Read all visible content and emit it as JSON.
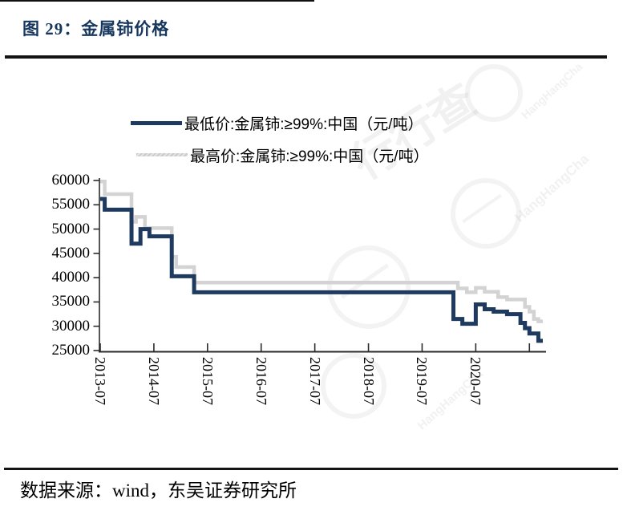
{
  "page": {
    "title": "图 29：金属铈价格",
    "source_note": "数据来源：wind，东吴证券研究所"
  },
  "watermark": {
    "text_cn": "行行查",
    "text_en": "HangHangCha"
  },
  "colors": {
    "title_navy": "#17375E",
    "axis": "#2B2B2B",
    "min_line": "#1F3A5F",
    "max_line": "#D3D3D3"
  },
  "chart_data": {
    "type": "line",
    "step": true,
    "grid": false,
    "legend_position": "top",
    "x_start": "2013-07",
    "x_interval": "monthly",
    "xtick_labels": [
      "2013-07",
      "2014-07",
      "2015-07",
      "2016-07",
      "2017-07",
      "2018-07",
      "2019-07",
      "2020-07"
    ],
    "yticks": [
      60000,
      55000,
      50000,
      45000,
      40000,
      35000,
      30000,
      25000
    ],
    "ylim": [
      25000,
      60000
    ],
    "series": [
      {
        "name": "最低价:金属铈:≥99%:中国（元/吨）",
        "color": "#1F3A5F",
        "width": 5,
        "values": [
          56200,
          54000,
          54000,
          54000,
          54000,
          54000,
          54000,
          47000,
          47000,
          50000,
          50000,
          48500,
          48500,
          48500,
          48500,
          48500,
          40300,
          40300,
          40300,
          40300,
          40300,
          37000,
          37000,
          37000,
          37000,
          37000,
          37000,
          37000,
          37000,
          37000,
          37000,
          37000,
          37000,
          37000,
          37000,
          37000,
          37000,
          37000,
          37000,
          37000,
          37000,
          37000,
          37000,
          37000,
          37000,
          37000,
          37000,
          37000,
          37000,
          37000,
          37000,
          37000,
          37000,
          37000,
          37000,
          37000,
          37000,
          37000,
          37000,
          37000,
          37000,
          37000,
          37000,
          37000,
          37000,
          37000,
          37000,
          37000,
          37000,
          37000,
          37000,
          37000,
          37000,
          37000,
          37000,
          37000,
          37000,
          37000,
          37000,
          31500,
          31500,
          30500,
          30500,
          30500,
          34500,
          34500,
          33500,
          33500,
          33000,
          33000,
          33000,
          32500,
          32500,
          32500,
          30700,
          29600,
          28500,
          28500,
          27000,
          27000
        ]
      },
      {
        "name": "最高价:金属铈:≥99%:中国（元/吨）",
        "color": "#D3D3D3",
        "width": 4.5,
        "values": [
          59800,
          57200,
          57200,
          57200,
          57200,
          57200,
          57200,
          51500,
          52500,
          52500,
          50200,
          50200,
          50200,
          50200,
          50200,
          50200,
          44300,
          42200,
          42200,
          42200,
          42200,
          39000,
          39000,
          39000,
          39000,
          39000,
          39000,
          39000,
          39000,
          39000,
          39000,
          39000,
          39000,
          39000,
          39000,
          39000,
          39000,
          39000,
          39000,
          39000,
          39000,
          39000,
          39000,
          39000,
          39000,
          39000,
          39000,
          39000,
          39000,
          39000,
          39000,
          39000,
          39000,
          39000,
          39000,
          39000,
          39000,
          39000,
          39000,
          39000,
          39000,
          39000,
          39000,
          39000,
          39000,
          39000,
          39000,
          39000,
          39000,
          39000,
          39000,
          39000,
          39000,
          39000,
          39000,
          39000,
          39000,
          39000,
          39000,
          39000,
          37800,
          37800,
          37000,
          37000,
          37900,
          37900,
          37100,
          37100,
          37100,
          36000,
          36000,
          35500,
          35500,
          35500,
          35500,
          34000,
          33000,
          31500,
          31000,
          31000
        ]
      }
    ]
  }
}
